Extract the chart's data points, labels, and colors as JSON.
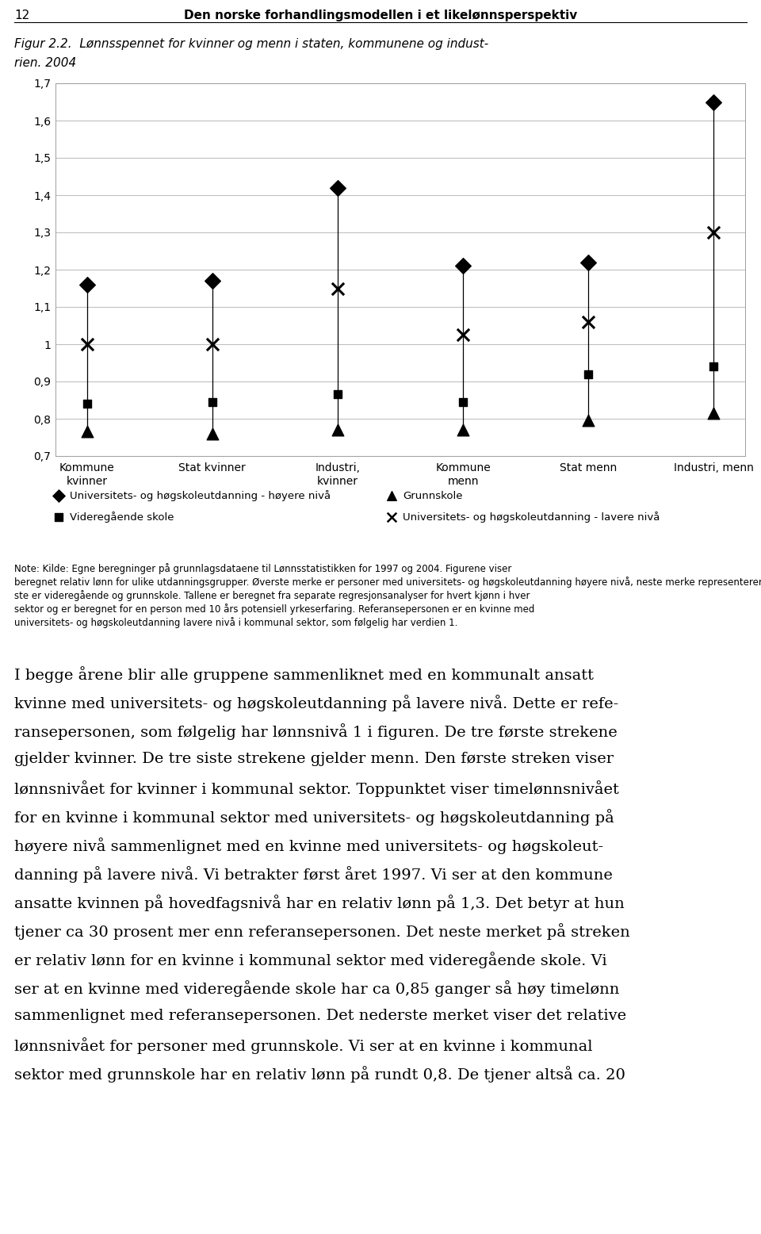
{
  "header_number": "12",
  "header_title": "Den norske forhandlingsmodellen i et likelønnsperspektiv",
  "fig_title_line1": "Figur 2.2.  Lønnsspennet for kvinner og menn i staten, kommunene og indust-",
  "fig_title_line2": "rien. 2004",
  "categories": [
    "Kommune\nkvinner",
    "Stat kvinner",
    "Industri,\nkvinner",
    "Kommune\nmenn",
    "Stat menn",
    "Industri, menn"
  ],
  "ylim": [
    0.7,
    1.7
  ],
  "ytick_vals": [
    0.7,
    0.8,
    0.9,
    1.0,
    1.1,
    1.2,
    1.3,
    1.4,
    1.5,
    1.6,
    1.7
  ],
  "ytick_labels": [
    "0,7",
    "0,8",
    "0,9",
    "1",
    "1,1",
    "1,2",
    "1,3",
    "1,4",
    "1,5",
    "1,6",
    "1,7"
  ],
  "uni_higher": [
    1.16,
    1.17,
    1.42,
    1.21,
    1.22,
    1.65
  ],
  "uni_lower": [
    1.0,
    1.0,
    1.15,
    1.025,
    1.06,
    1.3
  ],
  "videregaende": [
    0.84,
    0.845,
    0.865,
    0.845,
    0.92,
    0.94
  ],
  "grunnskole": [
    0.765,
    0.76,
    0.77,
    0.77,
    0.795,
    0.815
  ],
  "legend_1": "Universitets- og høgskoleutdanning - høyere nivå",
  "legend_2": "Grunnskole",
  "legend_3": "Videregående skole",
  "legend_4": "Universitets- og høgskoleutdanning - lavere nivå",
  "note_lines": [
    "Note: Kilde: Egne beregninger på grunnlagsdataene til Lønnsstatistikken for 1997 og 2004. Figurene viser",
    "beregnet relativ lønn for ulike utdanningsgrupper. Øverste merke er personer med universitets- og høgskoleutdanning høyere nivå, neste merke representerer universitets- og høgskoleutdanning lavere nivå. De to neder-",
    "ste er videregående og grunnskole. Tallene er beregnet fra separate regresjonsanalyser for hvert kjønn i hver",
    "sektor og er beregnet for en person med 10 års potensiell yrkeserfaring. Referansepersonen er en kvinne med",
    "universitets- og høgskoleutdanning lavere nivå i kommunal sektor, som følgelig har verdien 1."
  ],
  "body_lines": [
    "I begge årene blir alle gruppene sammenliknet med en kommunalt ansatt",
    "kvinne med universitets- og høgskoleutdanning på lavere nivå. Dette er refe-",
    "ransepersonen, som følgelig har lønnsnivå 1 i figuren. De tre første strekene",
    "gjelder kvinner. De tre siste strekene gjelder menn. Den første streken viser",
    "lønnsnivået for kvinner i kommunal sektor. Toppunktet viser timelønnsnivået",
    "for en kvinne i kommunal sektor med universitets- og høgskoleutdanning på",
    "høyere nivå sammenlignet med en kvinne med universitets- og høgskoleut-",
    "danning på lavere nivå. Vi betrakter først året 1997. Vi ser at den kommune",
    "ansatte kvinnen på hovedfagsnivå har en relativ lønn på 1,3. Det betyr at hun",
    "tjener ca 30 prosent mer enn referansepersonen. Det neste merket på streken",
    "er relativ lønn for en kvinne i kommunal sektor med videregående skole. Vi",
    "ser at en kvinne med videregående skole har ca 0,85 ganger så høy timelønn",
    "sammenlignet med referansepersonen. Det nederste merket viser det relative",
    "lønnsnivået for personer med grunnskole. Vi ser at en kvinne i kommunal",
    "sektor med grunnskole har en relativ lønn på rundt 0,8. De tjener altså ca. 20"
  ]
}
